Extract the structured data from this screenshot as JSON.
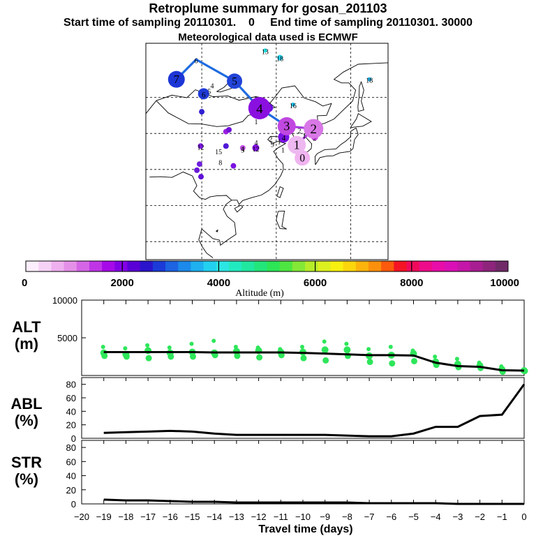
{
  "header": {
    "title": "Retroplume summary for gosan_201103",
    "start_label": "Start time of sampling 20110301.",
    "start_time": "0",
    "end_label": "End time of sampling 20110301. 30000",
    "met_label": "Meteorological data used is ECMWF"
  },
  "colorbar": {
    "label": "Altitude (m)",
    "tick_labels": [
      "0",
      "2000",
      "4000",
      "6000",
      "8000",
      "10000"
    ],
    "min": 0,
    "max": 10000,
    "colors": [
      "#fdeefd",
      "#f7d2f7",
      "#efb0ef",
      "#e590e8",
      "#d466e6",
      "#bf35e6",
      "#a70ae8",
      "#8200e6",
      "#5a00d6",
      "#2a14cc",
      "#1b3ad8",
      "#1d63e2",
      "#1c8aea",
      "#1eb0ef",
      "#22d1f0",
      "#2ce6e3",
      "#22eac0",
      "#20e8a0",
      "#22e67a",
      "#2ce656",
      "#4ee640",
      "#84e836",
      "#b6ec2a",
      "#dcf020",
      "#f8f010",
      "#fcd60c",
      "#fcb40c",
      "#fc900c",
      "#fc5a0c",
      "#f41424",
      "#f00a5a",
      "#ee0c8a",
      "#e80ca8",
      "#da10b6",
      "#c416a8",
      "#a81e92",
      "#8e247c",
      "#702a68"
    ]
  },
  "map": {
    "trajectory": [
      {
        "day": "0",
        "lon": 127.0,
        "lat": 33.2,
        "size": 11,
        "color": "#f0b4f0"
      },
      {
        "day": "1",
        "lon": 125.5,
        "lat": 36.8,
        "size": 13,
        "color": "#eeb8f0"
      },
      {
        "day": "2",
        "lon": 130.0,
        "lat": 41.3,
        "size": 14,
        "color": "#d878e6"
      },
      {
        "day": "3",
        "lon": 122.8,
        "lat": 42.0,
        "size": 13,
        "color": "#c048e0"
      },
      {
        "day": "4",
        "lon": 115.5,
        "lat": 47.0,
        "size": 16,
        "color": "#8a10e0"
      },
      {
        "day": "5",
        "lon": 108.8,
        "lat": 54.5,
        "size": 11,
        "color": "#2244d8"
      },
      {
        "day": "6",
        "lon": 98.5,
        "lat": 60.5,
        "size": 0,
        "color": "#1d63e2"
      },
      {
        "day": "7",
        "lon": 93.2,
        "lat": 55.0,
        "size": 12,
        "color": "#1c36d6"
      }
    ],
    "other_markers": [
      {
        "day": "6",
        "lon": 100.5,
        "lat": 51.0,
        "size": 8,
        "color": "#1f3ad6"
      },
      {
        "day": "3",
        "lon": 118.0,
        "lat": 47.1,
        "size": 6,
        "color": "#6a10e0"
      },
      {
        "day": "4",
        "lon": 122.0,
        "lat": 39.0,
        "size": 8,
        "color": "#7a10e6"
      },
      {
        "day": "2",
        "lon": 130.3,
        "lat": 39.0,
        "size": 5,
        "color": "#c848e2"
      },
      {
        "day": "18",
        "lon": 121.0,
        "lat": 61.0,
        "size": 4,
        "color": "#22d0f0"
      },
      {
        "day": "13",
        "lon": 117.0,
        "lat": 63.0,
        "size": 3,
        "color": "#22e0e6"
      },
      {
        "day": "16",
        "lon": 124.5,
        "lat": 48.0,
        "size": 3,
        "color": "#20c0e8"
      },
      {
        "day": "18",
        "lon": 145.0,
        "lat": 55.0,
        "size": 3,
        "color": "#20b0e8"
      },
      {
        "day": "12",
        "lon": 114.5,
        "lat": 36.0,
        "size": 5,
        "color": "#8010e0"
      },
      {
        "day": "4",
        "lon": 111.0,
        "lat": 36.0,
        "size": 4,
        "color": "#c050e4"
      },
      {
        "day": "",
        "lon": 106.5,
        "lat": 40.5,
        "size": 4,
        "color": "#9a20e0"
      },
      {
        "day": "",
        "lon": 107.3,
        "lat": 41.0,
        "size": 4,
        "color": "#7010d8"
      },
      {
        "day": "",
        "lon": 106.5,
        "lat": 36.5,
        "size": 4,
        "color": "#5018d6"
      },
      {
        "day": "",
        "lon": 100.0,
        "lat": 46.0,
        "size": 4,
        "color": "#3020d0"
      },
      {
        "day": "",
        "lon": 108.5,
        "lat": 31.0,
        "size": 4,
        "color": "#7a10e0"
      },
      {
        "day": "",
        "lon": 99.8,
        "lat": 28.0,
        "size": 4,
        "color": "#6010d8"
      },
      {
        "day": "12",
        "lon": 99.7,
        "lat": 36.5,
        "size": 4,
        "color": "#7a18e0"
      },
      {
        "day": "",
        "lon": 99.4,
        "lat": 31.5,
        "size": 4,
        "color": "#7020dc"
      },
      {
        "day": "",
        "lon": 98.7,
        "lat": 29.8,
        "size": 4,
        "color": "#6a18d8"
      }
    ],
    "small_numbers": [
      {
        "text": "4",
        "lon": 102.8,
        "lat": 53.3
      },
      {
        "text": "5",
        "lon": 102.0,
        "lat": 51.7
      },
      {
        "text": "1",
        "lon": 114.6,
        "lat": 43.3
      },
      {
        "text": "2",
        "lon": 126.2,
        "lat": 40.8
      },
      {
        "text": "1",
        "lon": 127.5,
        "lat": 39.5
      },
      {
        "text": "1",
        "lon": 120.8,
        "lat": 37.8
      },
      {
        "text": "2",
        "lon": 118.5,
        "lat": 38.5
      },
      {
        "text": "4",
        "lon": 114.6,
        "lat": 37.5
      },
      {
        "text": "1",
        "lon": 121.8,
        "lat": 35.5
      },
      {
        "text": "9",
        "lon": 119.0,
        "lat": 37.0
      },
      {
        "text": "3",
        "lon": 111.0,
        "lat": 35.5
      },
      {
        "text": "15",
        "lon": 104.5,
        "lat": 35.0
      },
      {
        "text": "8",
        "lon": 105.0,
        "lat": 32.0
      }
    ]
  },
  "chart_data": [
    {
      "type": "scatter+line",
      "title": "ALT",
      "ylabel": "ALT (m)",
      "ylim": [
        0,
        10000
      ],
      "y_ticks": [
        5000,
        10000
      ],
      "x": [
        -19,
        -18,
        -17,
        -16,
        -15,
        -14,
        -13,
        -12,
        -11,
        -10,
        -9,
        -8,
        -7,
        -6,
        -5,
        -4,
        -3,
        -2,
        -1,
        0
      ],
      "median_altitude_m": [
        3100,
        3100,
        3100,
        3100,
        3100,
        3050,
        3050,
        3050,
        3050,
        3000,
        2900,
        2800,
        2700,
        2700,
        2650,
        1700,
        1250,
        1150,
        700,
        650
      ],
      "spread_points": [
        {
          "x": -19,
          "y": [
            3800,
            3000,
            2600
          ]
        },
        {
          "x": -18,
          "y": [
            3600,
            2800,
            2500
          ]
        },
        {
          "x": -17,
          "y": [
            4000,
            3300,
            2300
          ]
        },
        {
          "x": -16,
          "y": [
            3700,
            3000,
            2500
          ]
        },
        {
          "x": -15,
          "y": [
            4200,
            3100,
            2500
          ]
        },
        {
          "x": -14,
          "y": [
            4600,
            3000,
            2700
          ]
        },
        {
          "x": -13,
          "y": [
            3800,
            3200,
            2600
          ]
        },
        {
          "x": -12,
          "y": [
            3700,
            3300,
            2400
          ]
        },
        {
          "x": -11,
          "y": [
            3500,
            3100,
            2700
          ]
        },
        {
          "x": -10,
          "y": [
            3800,
            3100,
            2300
          ]
        },
        {
          "x": -9,
          "y": [
            4500,
            3400,
            2000
          ]
        },
        {
          "x": -8,
          "y": [
            4200,
            3400,
            2600
          ]
        },
        {
          "x": -7,
          "y": [
            3500,
            2600,
            1800
          ]
        },
        {
          "x": -6,
          "y": [
            3800,
            2700,
            1600
          ]
        },
        {
          "x": -5,
          "y": [
            3300,
            2900,
            1900
          ]
        },
        {
          "x": -4,
          "y": [
            2500,
            1800,
            1400
          ]
        },
        {
          "x": -3,
          "y": [
            2200,
            1500,
            1100
          ]
        },
        {
          "x": -2,
          "y": [
            1700,
            1300,
            1000
          ]
        },
        {
          "x": -1,
          "y": [
            1200,
            800,
            500
          ]
        },
        {
          "x": 0,
          "y": [
            800,
            650,
            600
          ]
        }
      ]
    },
    {
      "type": "line",
      "title": "ABL",
      "ylabel": "ABL (%)",
      "ylim": [
        0,
        90
      ],
      "y_ticks": [
        0,
        20,
        40,
        60,
        80
      ],
      "x": [
        -19,
        -18,
        -17,
        -16,
        -15,
        -14,
        -13,
        -12,
        -11,
        -10,
        -9,
        -8,
        -7,
        -6,
        -5,
        -4,
        -3,
        -2,
        -1,
        0
      ],
      "values": [
        8,
        9,
        10,
        11,
        10,
        7,
        5,
        5,
        5,
        5,
        5,
        4,
        3,
        3,
        7,
        17,
        17,
        33,
        35,
        80
      ]
    },
    {
      "type": "line",
      "title": "STR",
      "ylabel": "STR (%)",
      "ylim": [
        0,
        90
      ],
      "y_ticks": [
        0,
        20,
        40,
        60,
        80
      ],
      "x": [
        -19,
        -18,
        -17,
        -16,
        -15,
        -14,
        -13,
        -12,
        -11,
        -10,
        -9,
        -8,
        -7,
        -6,
        -5,
        -4,
        -3,
        -2,
        -1,
        0
      ],
      "values": [
        6,
        5,
        5,
        4,
        3,
        3,
        2,
        2,
        2,
        2,
        2,
        2,
        1,
        1,
        1,
        1,
        0,
        0,
        0,
        0
      ]
    }
  ],
  "panels": {
    "alt_label_top": "ALT",
    "alt_label_unit": "(m)",
    "abl_label_top": "ABL",
    "abl_label_unit": "(%)",
    "str_label_top": "STR",
    "str_label_unit": "(%)",
    "alt_tick_labels": [
      "10000",
      "5000"
    ],
    "pct_tick_labels": [
      "80",
      "60",
      "40",
      "20",
      "0"
    ],
    "x_tick_labels": [
      "−20",
      "−19",
      "−18",
      "−17",
      "−16",
      "−15",
      "−14",
      "−13",
      "−12",
      "−11",
      "−10",
      "−9",
      "−8",
      "−7",
      "−6",
      "−5",
      "−4",
      "−3",
      "−2",
      "−1",
      "0"
    ],
    "xlabel": "Travel time (days)"
  },
  "colors": {
    "trajectory_blue": "#1f6be0",
    "trajectory_purple": "#a83ae0",
    "trajectory_pink": "#e8a0e8",
    "alt_points": "#2ee65a",
    "median_line": "#000000"
  }
}
